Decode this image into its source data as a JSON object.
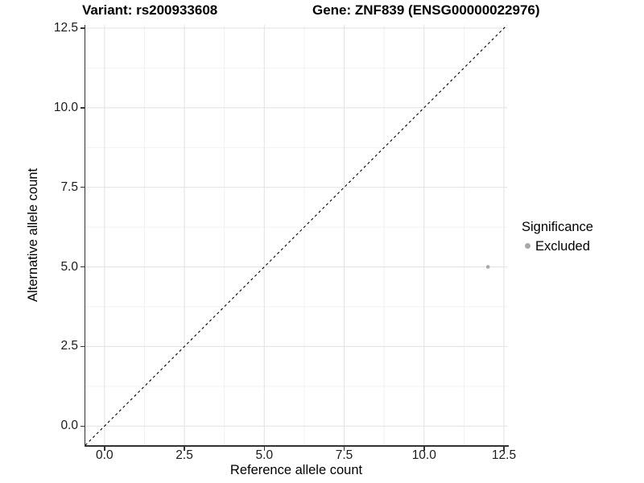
{
  "header": {
    "variant_title": "Variant: rs200933608",
    "gene_title": "Gene: ZNF839 (ENSG00000022976)"
  },
  "legend": {
    "title": "Significance",
    "position": "right",
    "items": [
      {
        "label": "Excluded",
        "color": "#a8a8a8"
      }
    ]
  },
  "chart_data": {
    "type": "scatter",
    "title": "Variant: rs200933608   Gene: ZNF839 (ENSG00000022976)",
    "xlabel": "Reference allele count",
    "ylabel": "Alternative allele count",
    "xlim": [
      -0.6,
      12.6
    ],
    "ylim": [
      -0.6,
      12.6
    ],
    "x_ticks": [
      0.0,
      2.5,
      5.0,
      7.5,
      10.0,
      12.5
    ],
    "y_ticks": [
      0.0,
      2.5,
      5.0,
      7.5,
      10.0,
      12.5
    ],
    "x_tick_labels": [
      "0.0",
      "2.5",
      "5.0",
      "7.5",
      "10.0",
      "12.5"
    ],
    "y_tick_labels": [
      "0.0",
      "2.5",
      "5.0",
      "7.5",
      "10.0",
      "12.5"
    ],
    "minor_ticks": [
      1.25,
      3.75,
      6.25,
      8.75,
      11.25
    ],
    "grid": true,
    "series": [
      {
        "name": "Excluded",
        "color": "#a8a8a8",
        "points": [
          {
            "x": 12,
            "y": 5
          }
        ]
      }
    ],
    "reference_line": {
      "kind": "identity y=x",
      "style": "dashed",
      "color": "#000000",
      "from": [
        -0.6,
        -0.6
      ],
      "to": [
        12.6,
        12.6
      ]
    }
  },
  "colors": {
    "background": "#ffffff",
    "panel_background": "#ffffff",
    "grid_major": "#e4e4e4",
    "grid_minor": "#f2f2f2",
    "axis_line": "#333333",
    "tick_text": "#1a1a1a",
    "title_text": "#000000",
    "point": "#a8a8a8"
  }
}
